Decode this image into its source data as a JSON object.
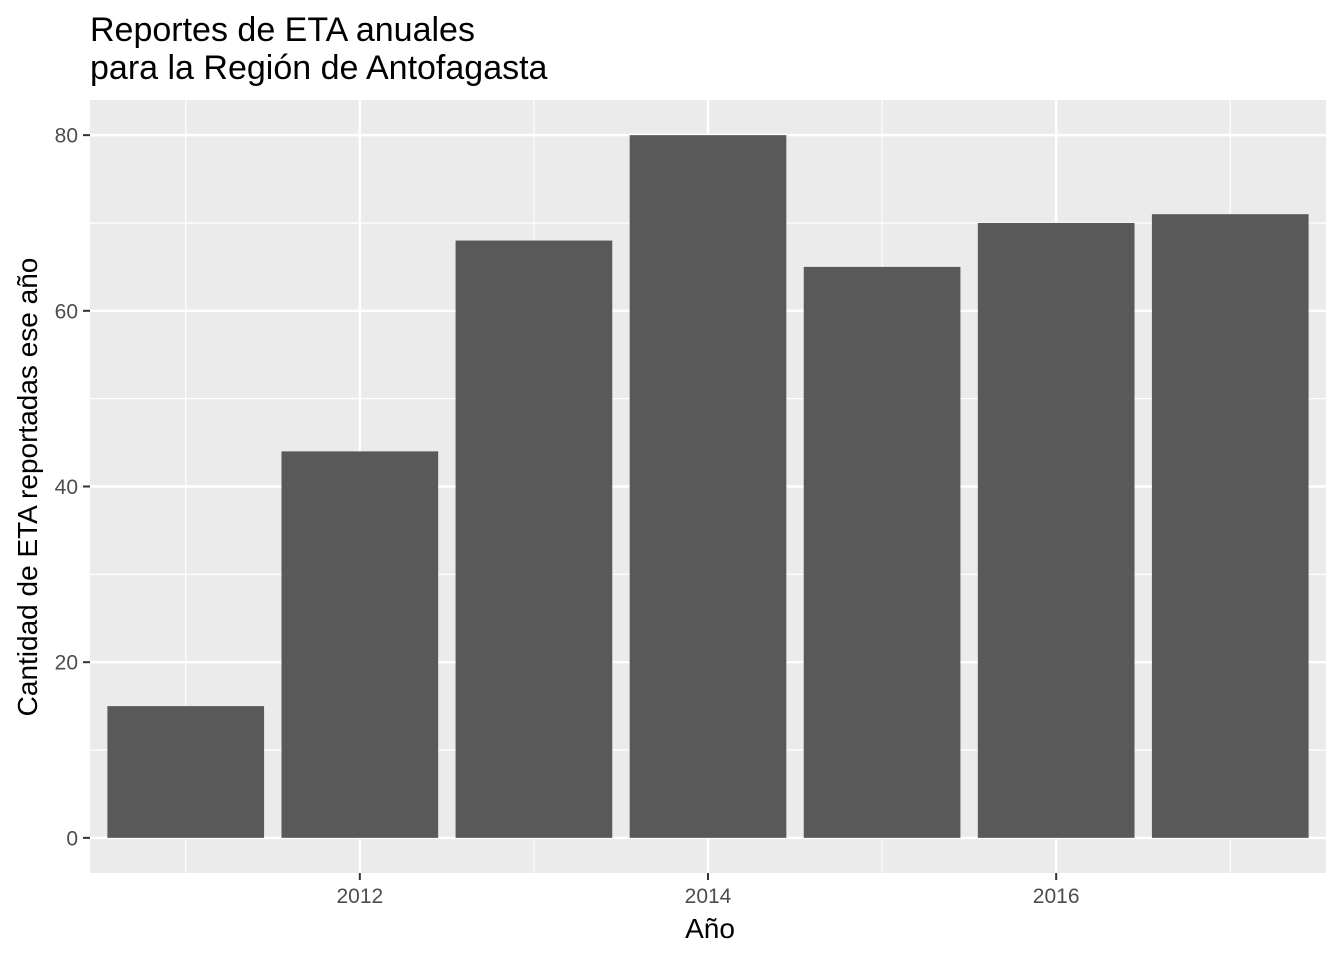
{
  "chart_data": {
    "type": "bar",
    "title": [
      "Reportes de ETA anuales",
      "para la Región de Antofagasta"
    ],
    "xlabel": "Año",
    "ylabel": "Cantidad de ETA reportadas ese año",
    "x": [
      2011,
      2012,
      2013,
      2014,
      2015,
      2016,
      2017
    ],
    "values": [
      15,
      44,
      68,
      80,
      65,
      70,
      71
    ],
    "xlim": [
      2010.45,
      2017.55
    ],
    "ylim": [
      -4,
      84
    ],
    "x_ticks": [
      2012,
      2014,
      2016
    ],
    "x_tick_labels": [
      "2012",
      "2014",
      "2016"
    ],
    "y_ticks": [
      0,
      20,
      40,
      60,
      80
    ],
    "y_tick_labels": [
      "0",
      "20",
      "40",
      "60",
      "80"
    ],
    "grid": true,
    "legend": "none",
    "colors": {
      "bar": "#595959",
      "panel": "#ebebeb",
      "grid": "#ffffff",
      "tick": "#333333"
    }
  }
}
